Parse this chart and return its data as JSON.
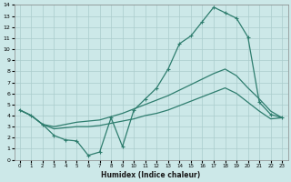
{
  "background_color": "#cce8e8",
  "grid_color": "#aacccc",
  "line_color": "#2e7d6e",
  "xlabel": "Humidex (Indice chaleur)",
  "xlim": [
    -0.5,
    23.5
  ],
  "ylim": [
    0,
    14
  ],
  "xticks": [
    0,
    1,
    2,
    3,
    4,
    5,
    6,
    7,
    8,
    9,
    10,
    11,
    12,
    13,
    14,
    15,
    16,
    17,
    18,
    19,
    20,
    21,
    22,
    23
  ],
  "yticks": [
    0,
    1,
    2,
    3,
    4,
    5,
    6,
    7,
    8,
    9,
    10,
    11,
    12,
    13,
    14
  ],
  "line1_x": [
    0,
    1,
    2,
    3,
    4,
    5,
    6,
    7,
    8,
    9,
    10,
    11,
    12,
    13,
    14,
    15,
    16,
    17,
    18,
    19,
    20,
    21,
    22,
    23
  ],
  "line1_y": [
    4.5,
    4.0,
    3.2,
    2.2,
    1.8,
    1.7,
    0.4,
    0.7,
    3.8,
    1.2,
    4.5,
    5.5,
    6.5,
    8.2,
    10.5,
    11.2,
    12.5,
    13.8,
    13.3,
    12.8,
    11.1,
    5.2,
    4.1,
    3.8
  ],
  "line2_x": [
    0,
    1,
    2,
    3,
    4,
    5,
    6,
    7,
    8,
    9,
    10,
    11,
    12,
    13,
    14,
    15,
    16,
    17,
    18,
    19,
    20,
    21,
    22,
    23
  ],
  "line2_y": [
    4.5,
    4.0,
    3.2,
    3.0,
    3.2,
    3.4,
    3.5,
    3.6,
    3.9,
    4.2,
    4.6,
    5.0,
    5.4,
    5.8,
    6.3,
    6.8,
    7.3,
    7.8,
    8.2,
    7.6,
    6.5,
    5.5,
    4.4,
    3.8
  ],
  "line3_x": [
    0,
    1,
    2,
    3,
    4,
    5,
    6,
    7,
    8,
    9,
    10,
    11,
    12,
    13,
    14,
    15,
    16,
    17,
    18,
    19,
    20,
    21,
    22,
    23
  ],
  "line3_y": [
    4.5,
    4.0,
    3.2,
    2.8,
    2.9,
    3.0,
    3.0,
    3.1,
    3.3,
    3.5,
    3.7,
    4.0,
    4.2,
    4.5,
    4.9,
    5.3,
    5.7,
    6.1,
    6.5,
    6.0,
    5.2,
    4.4,
    3.7,
    3.8
  ]
}
